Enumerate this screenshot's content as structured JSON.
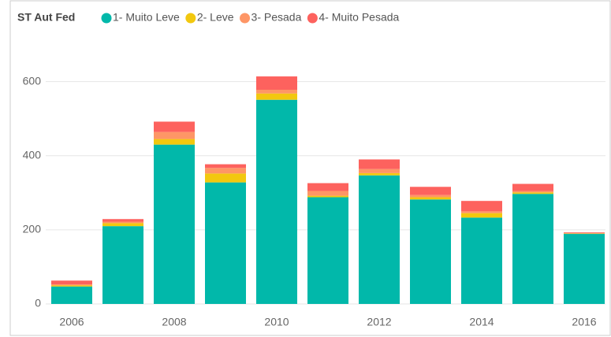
{
  "chart_data": {
    "type": "stacked_bar",
    "title": "ST Aut Fed",
    "categories": [
      "2006",
      null,
      "2008",
      null,
      "2010",
      null,
      "2012",
      null,
      "2014",
      null,
      "2016"
    ],
    "series": [
      {
        "name": "1- Muito Leve",
        "color": "#01B8AA",
        "values": [
          47,
          210,
          430,
          328,
          551,
          288,
          347,
          282,
          233,
          297,
          189
        ]
      },
      {
        "name": "2- Leve",
        "color": "#F2C80F",
        "values": [
          3,
          8,
          15,
          24,
          17,
          4,
          6,
          6,
          12,
          4,
          1
        ]
      },
      {
        "name": "3- Pesada",
        "color": "#FE9666",
        "values": [
          3,
          4,
          19,
          15,
          10,
          13,
          11,
          6,
          5,
          4,
          1
        ]
      },
      {
        "name": "4- Muito Pesada",
        "color": "#FD625E",
        "values": [
          10,
          7,
          28,
          10,
          36,
          21,
          26,
          22,
          28,
          19,
          2
        ]
      }
    ],
    "ylim": [
      0,
      680
    ],
    "yticks": [
      0,
      200,
      400,
      600
    ],
    "grid": true,
    "legend": "top-left"
  }
}
